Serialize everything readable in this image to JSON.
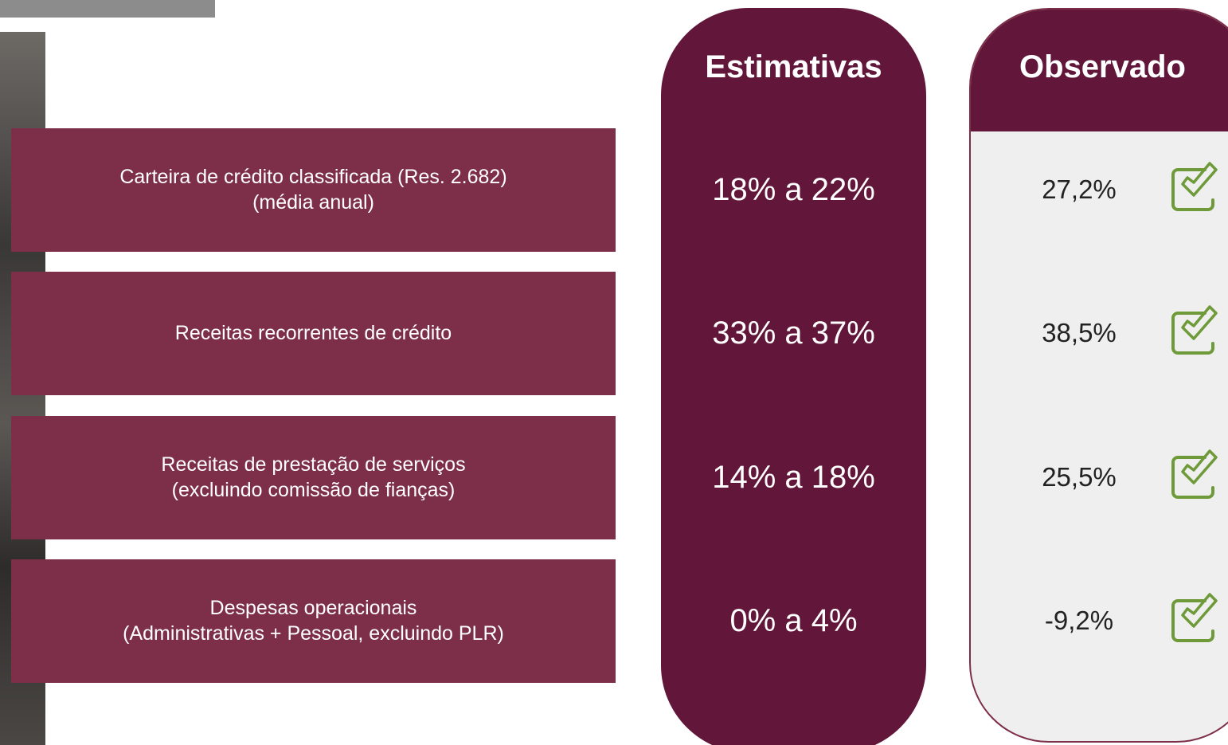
{
  "header": {
    "estimates": "Estimativas",
    "observed": "Observado"
  },
  "rows": [
    {
      "label": [
        "Carteira de crédito classificada (Res. 2.682)",
        "(média anual)"
      ],
      "estimate": "18% a 22%",
      "observed": "27,2%"
    },
    {
      "label": [
        "Receitas recorrentes de crédito"
      ],
      "estimate": "33% a 37%",
      "observed": "38,5%"
    },
    {
      "label": [
        "Receitas de prestação de serviços",
        "(excluindo comissão de fianças)"
      ],
      "estimate": "14% a 18%",
      "observed": "25,5%"
    },
    {
      "label": [
        "Despesas operacionais",
        "(Administrativas + Pessoal, excluindo PLR)"
      ],
      "estimate": "0% a 4%",
      "observed": "-9,2%"
    }
  ]
}
